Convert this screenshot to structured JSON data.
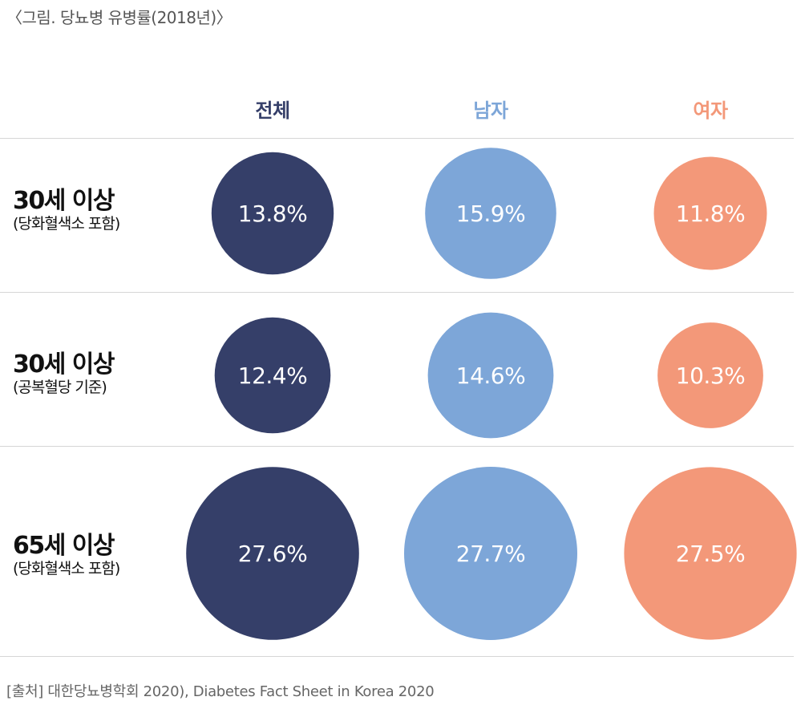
{
  "figure_title": "〈그림. 당뇨병 유병률(2018년)〉",
  "source_note": "[출처] 대한당뇨병학회 2020), Diabetes Fact Sheet in Korea 2020",
  "colors": {
    "total": "#353f69",
    "male": "#7da6d8",
    "female": "#f39879",
    "header_total": "#353f69",
    "header_male": "#7da6d8",
    "header_female": "#f39879",
    "rule": "#d6d6d6"
  },
  "chart_data": {
    "type": "bubble-table",
    "categories": [
      "전체",
      "남자",
      "여자"
    ],
    "rows": [
      {
        "label": "30세 이상",
        "sublabel": "(당화혈색소 포함)"
      },
      {
        "label": "30세 이상",
        "sublabel": "(공복혈당 기준)"
      },
      {
        "label": "65세 이상",
        "sublabel": "(당화혈색소 포함)"
      }
    ],
    "series": [
      {
        "values": [
          13.8,
          12.4,
          27.6
        ],
        "labels": [
          "13.8%",
          "12.4%",
          "27.6%"
        ]
      },
      {
        "values": [
          15.9,
          14.6,
          27.7
        ],
        "labels": [
          "15.9%",
          "14.6%",
          "27.7%"
        ]
      },
      {
        "values": [
          11.8,
          10.3,
          27.5
        ],
        "labels": [
          "11.8%",
          "10.3%",
          "27.5%"
        ]
      }
    ],
    "unit": "%"
  }
}
